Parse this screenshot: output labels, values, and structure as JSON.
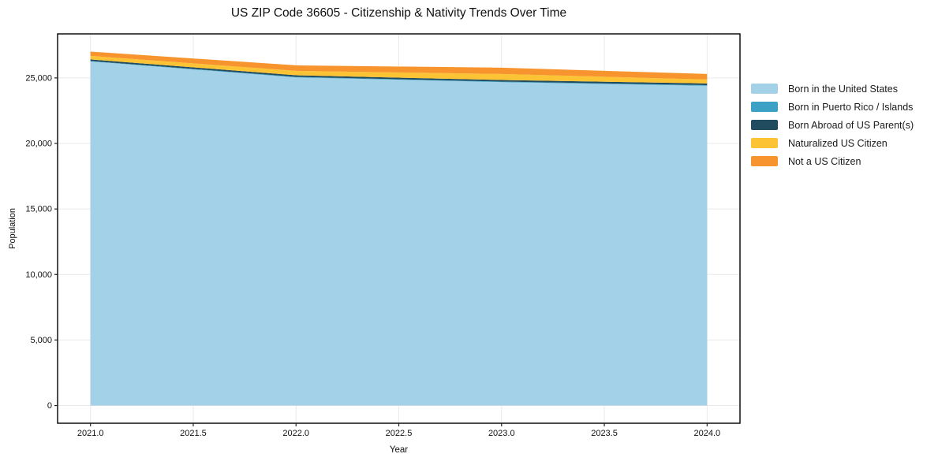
{
  "chart_data": {
    "type": "area",
    "stacked": true,
    "title": "US ZIP Code 36605 - Citizenship & Nativity Trends Over Time",
    "xlabel": "Year",
    "ylabel": "Population",
    "x": [
      2021,
      2022,
      2023,
      2024
    ],
    "series": [
      {
        "name": "Born in the United States",
        "color": "#A3D1E8",
        "values": [
          26260,
          25040,
          24680,
          24400
        ]
      },
      {
        "name": "Born in Puerto Rico / Islands",
        "color": "#3BA2C5",
        "values": [
          30,
          40,
          40,
          50
        ]
      },
      {
        "name": "Born Abroad of US Parent(s)",
        "color": "#214B5E",
        "values": [
          120,
          120,
          120,
          130
        ]
      },
      {
        "name": "Naturalized US Citizen",
        "color": "#FCC335",
        "values": [
          270,
          340,
          460,
          300
        ]
      },
      {
        "name": "Not a US Citizen",
        "color": "#F7942D",
        "values": [
          330,
          420,
          480,
          420
        ]
      }
    ],
    "stack_totals": [
      27010,
      25960,
      25780,
      25300
    ],
    "xlim": [
      2020.84,
      2024.16
    ],
    "ylim": [
      -1350,
      28360
    ],
    "x_ticks": [
      {
        "value": 2021.0,
        "label": "2021.0"
      },
      {
        "value": 2021.5,
        "label": "2021.5"
      },
      {
        "value": 2022.0,
        "label": "2022.0"
      },
      {
        "value": 2022.5,
        "label": "2022.5"
      },
      {
        "value": 2023.0,
        "label": "2023.0"
      },
      {
        "value": 2023.5,
        "label": "2023.5"
      },
      {
        "value": 2024.0,
        "label": "2024.0"
      }
    ],
    "y_ticks": [
      {
        "value": 0,
        "label": "0"
      },
      {
        "value": 5000,
        "label": "5,000"
      },
      {
        "value": 10000,
        "label": "10,000"
      },
      {
        "value": 15000,
        "label": "15,000"
      },
      {
        "value": 20000,
        "label": "20,000"
      },
      {
        "value": 25000,
        "label": "25,000"
      }
    ],
    "grid": true,
    "legend_position": "outside-right",
    "colors": {
      "background": "#ffffff",
      "grid": "#e9e9e9",
      "spine": "#000000",
      "text": "#111111"
    }
  }
}
